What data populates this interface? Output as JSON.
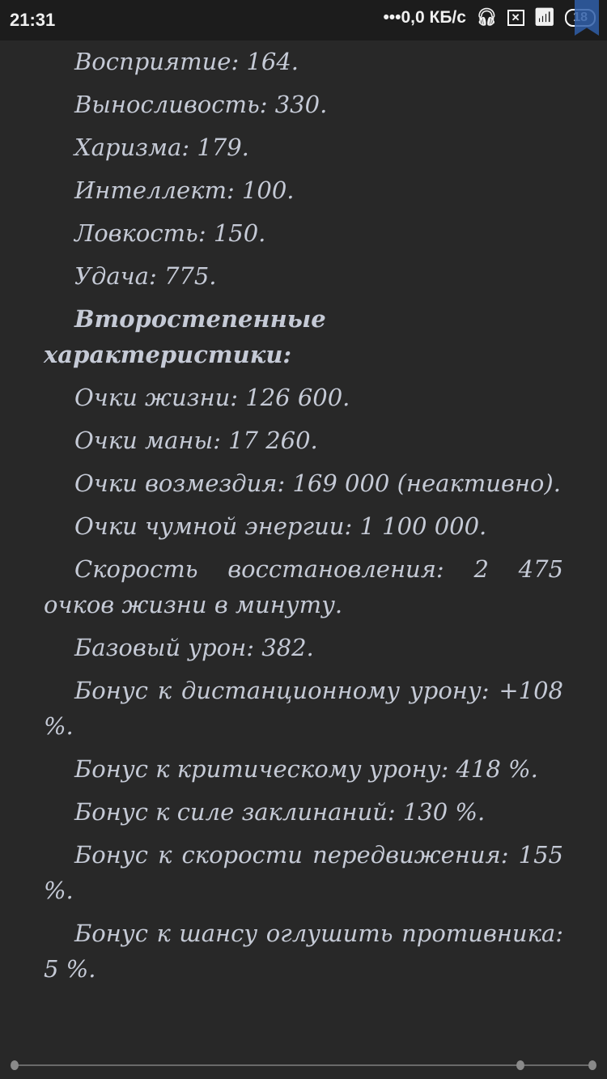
{
  "status_bar": {
    "time": "21:31",
    "network_speed": "•••0,0 КБ/с",
    "battery": "18",
    "icons": [
      "headset-icon",
      "sim-off-icon",
      "wifi-icon",
      "battery-icon",
      "bookmark-icon"
    ]
  },
  "paragraphs": [
    {
      "text": "Восприятие: 164.",
      "bold": false
    },
    {
      "text": "Выносливость: 330.",
      "bold": false
    },
    {
      "text": "Харизма: 179.",
      "bold": false
    },
    {
      "text": "Интеллект: 100.",
      "bold": false
    },
    {
      "text": "Ловкость: 150.",
      "bold": false
    },
    {
      "text": "Удача: 775.",
      "bold": false
    },
    {
      "text": "Второстепенные характеристики:",
      "bold": true
    },
    {
      "text": "Очки жизни: 126 600.",
      "bold": false
    },
    {
      "text": "Очки маны: 17 260.",
      "bold": false
    },
    {
      "text": "Очки возмездия: 169 000 (неактивно).",
      "bold": false
    },
    {
      "text": "Очки чумной энергии: 1 100 000.",
      "bold": false
    },
    {
      "text": "Скорость восстановления: 2 475 очков жизни в минуту.",
      "bold": false
    },
    {
      "text": "Базовый урон: 382.",
      "bold": false
    },
    {
      "text": "Бонус к дистанционному урону: +108 %.",
      "bold": false
    },
    {
      "text": "Бонус к критическому урону: 418 %.",
      "bold": false
    },
    {
      "text": "Бонус к силе заклинаний: 130 %.",
      "bold": false
    },
    {
      "text": "Бонус к скорости передвижения: 155 %.",
      "bold": false
    },
    {
      "text": "Бонус к шансу оглушить противника: 5 %.",
      "bold": false
    }
  ],
  "reading_progress": {
    "position": 0.875,
    "chapter_marks": [
      0,
      0.875,
      1
    ]
  }
}
